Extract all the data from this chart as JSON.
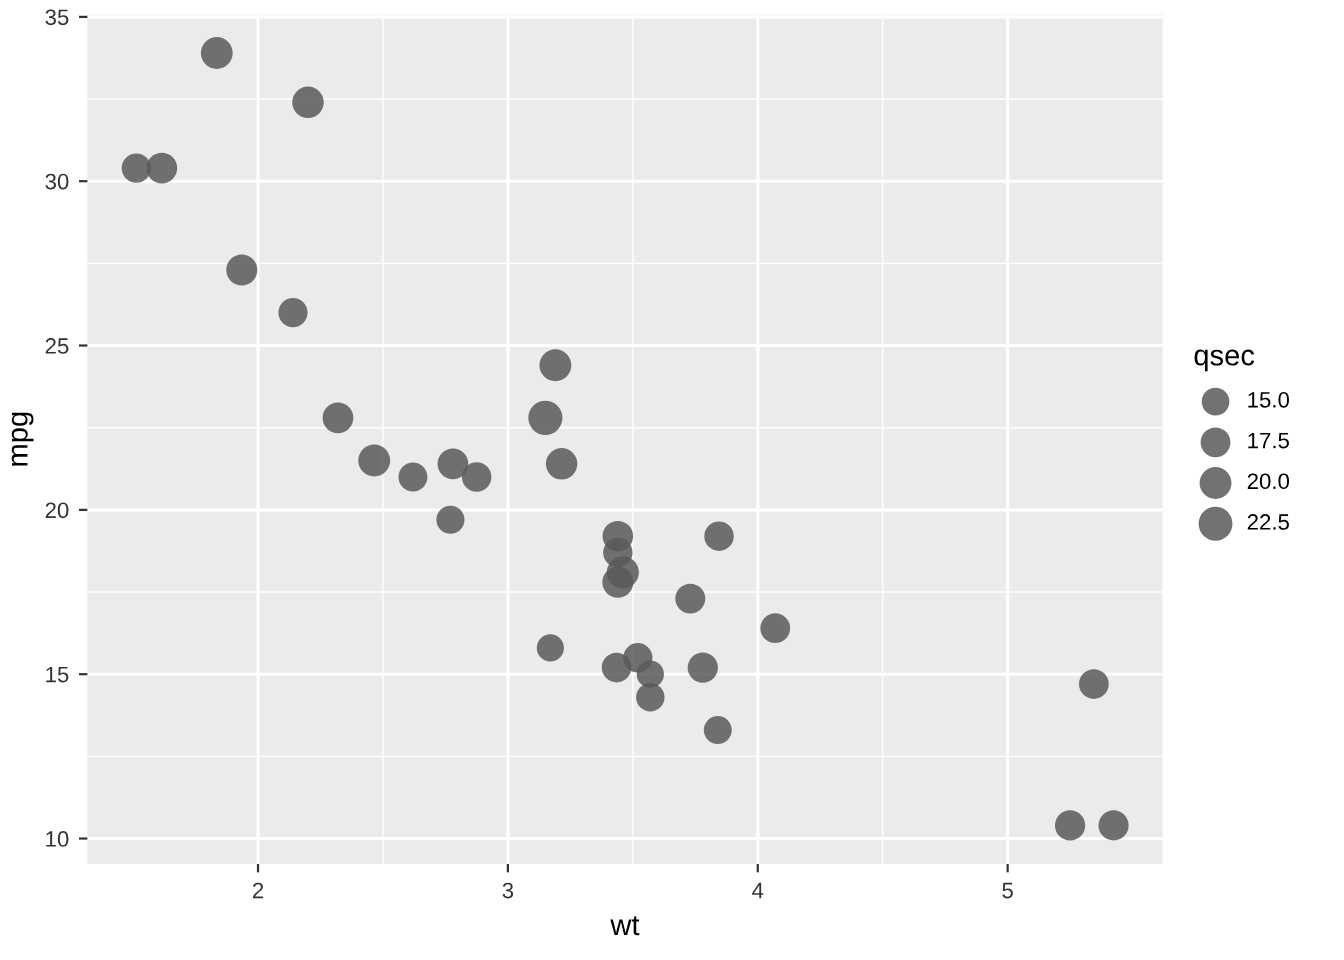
{
  "chart_data": {
    "type": "bubble",
    "xlabel": "wt",
    "ylabel": "mpg",
    "legend_title": "qsec",
    "grid": true,
    "color": "#595959",
    "x": [
      2.62,
      2.875,
      2.32,
      3.215,
      3.44,
      3.46,
      3.57,
      3.19,
      3.15,
      3.44,
      3.44,
      4.07,
      3.73,
      3.78,
      5.25,
      5.424,
      5.345,
      2.2,
      1.615,
      1.835,
      2.465,
      3.52,
      3.435,
      3.84,
      3.845,
      1.935,
      2.14,
      1.513,
      3.17,
      2.77,
      3.57,
      2.78
    ],
    "values": [
      21.0,
      21.0,
      22.8,
      21.4,
      18.7,
      18.1,
      14.3,
      24.4,
      22.8,
      19.2,
      17.8,
      16.4,
      17.3,
      15.2,
      10.4,
      10.4,
      14.7,
      32.4,
      30.4,
      33.9,
      21.5,
      15.5,
      15.2,
      13.3,
      19.2,
      27.3,
      26.0,
      30.4,
      15.8,
      19.7,
      15.0,
      21.4
    ],
    "sizes": [
      16.46,
      17.02,
      18.61,
      19.44,
      17.02,
      20.22,
      15.84,
      20.0,
      22.9,
      18.3,
      18.9,
      17.4,
      17.6,
      18.0,
      17.98,
      17.82,
      17.42,
      19.47,
      18.52,
      19.9,
      20.01,
      16.87,
      17.3,
      15.41,
      17.05,
      18.9,
      16.7,
      16.9,
      14.5,
      15.5,
      14.6,
      18.6
    ],
    "size_legend": [
      {
        "value": 15,
        "label": "15.0"
      },
      {
        "value": 17.5,
        "label": "17.5"
      },
      {
        "value": 20,
        "label": "20.0"
      },
      {
        "value": 22.5,
        "label": "22.5"
      }
    ],
    "xlim": [
      1.317,
      5.62
    ],
    "xticks": [
      2,
      3,
      4,
      5
    ],
    "ylim": [
      9.225,
      35.075
    ],
    "yticks": [
      10,
      15,
      20,
      25,
      30,
      35
    ]
  }
}
